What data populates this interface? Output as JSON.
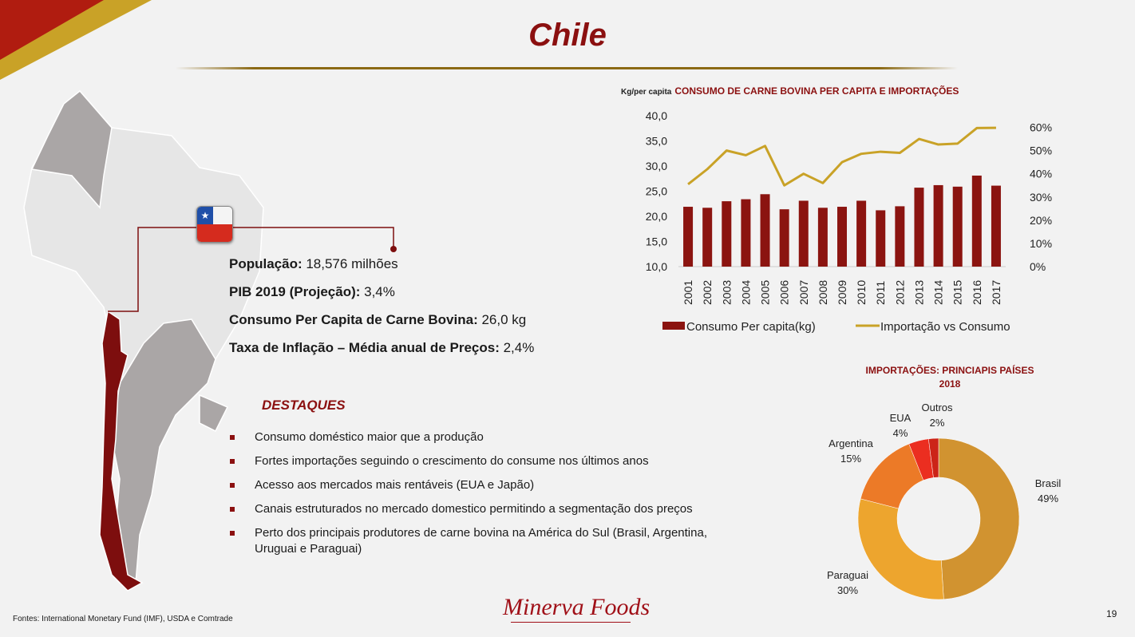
{
  "title": "Chile",
  "info": [
    {
      "label": "População:",
      "value": " 18,576 milhões"
    },
    {
      "label": "PIB 2019 (Projeção):",
      "value": " 3,4%"
    },
    {
      "label": "Consumo Per Capita de Carne Bovina:",
      "value": " 26,0 kg"
    },
    {
      "label": "Taxa de Inflação – Média anual de Preços:",
      "value": " 2,4%"
    }
  ],
  "destaques": {
    "heading": "DESTAQUES",
    "items": [
      "Consumo doméstico maior que a produção",
      "Fortes importações seguindo o crescimento do consume nos últimos anos",
      "Acesso aos mercados mais rentáveis (EUA e Japão)",
      "Canais estruturados no mercado domestico permitindo a segmentação dos preços",
      "Perto dos principais produtores de carne bovina na América do Sul (Brasil, Argentina, Uruguai e Paraguai)"
    ]
  },
  "footer": "Fontes: International Monetary Fund (IMF), USDA e Comtrade",
  "page_number": "19",
  "logo_text": "Minerva Foods",
  "colors": {
    "accent": "#8b1010",
    "gold": "#c9a227",
    "bar": "#8b1410"
  },
  "chart_data": [
    {
      "type": "bar",
      "title": "CONSUMO DE CARNE BOVINA PER CAPITA E IMPORTAÇÕES",
      "ylabel": "Kg/per capita",
      "categories": [
        "2001",
        "2002",
        "2003",
        "2004",
        "2005",
        "2006",
        "2007",
        "2008",
        "2009",
        "2010",
        "2011",
        "2012",
        "2013",
        "2014",
        "2015",
        "2016",
        "2017"
      ],
      "ylim": [
        10,
        40
      ],
      "yticks": [
        "10,0",
        "15,0",
        "20,0",
        "25,0",
        "30,0",
        "35,0",
        "40,0"
      ],
      "y2lim": [
        0,
        65
      ],
      "y2ticks": [
        "0%",
        "10%",
        "20%",
        "30%",
        "40%",
        "50%",
        "60%"
      ],
      "series": [
        {
          "name": "Consumo Per capita(kg)",
          "type": "bar",
          "color": "#8b1410",
          "values": [
            21.9,
            21.7,
            23.0,
            23.4,
            24.4,
            21.4,
            23.1,
            21.7,
            21.9,
            23.1,
            21.2,
            22.0,
            25.7,
            26.2,
            25.9,
            28.1,
            26.1
          ]
        },
        {
          "name": "Importação vs Consumo",
          "type": "line",
          "axis": "right",
          "color": "#c9a227",
          "values": [
            35.5,
            42,
            50,
            48,
            52,
            35,
            40,
            36,
            45,
            48.6,
            49.5,
            49,
            55,
            52.6,
            53,
            59.7,
            59.8
          ]
        }
      ],
      "legend": "bottom"
    },
    {
      "type": "pie",
      "title": "IMPORTAÇÕES: PRINCIAPIS PAÍSES",
      "subtitle": "2018",
      "slices": [
        {
          "label": "Brasil",
          "value": 49,
          "text": "49%",
          "color": "#d19330"
        },
        {
          "label": "Paraguai",
          "value": 30,
          "text": "30%",
          "color": "#eda52e"
        },
        {
          "label": "Argentina",
          "value": 15,
          "text": "15%",
          "color": "#ec7a27"
        },
        {
          "label": "EUA",
          "value": 4,
          "text": "4%",
          "color": "#eb2e20"
        },
        {
          "label": "Outros",
          "value": 2,
          "text": "2%",
          "color": "#cc2418"
        }
      ]
    }
  ]
}
